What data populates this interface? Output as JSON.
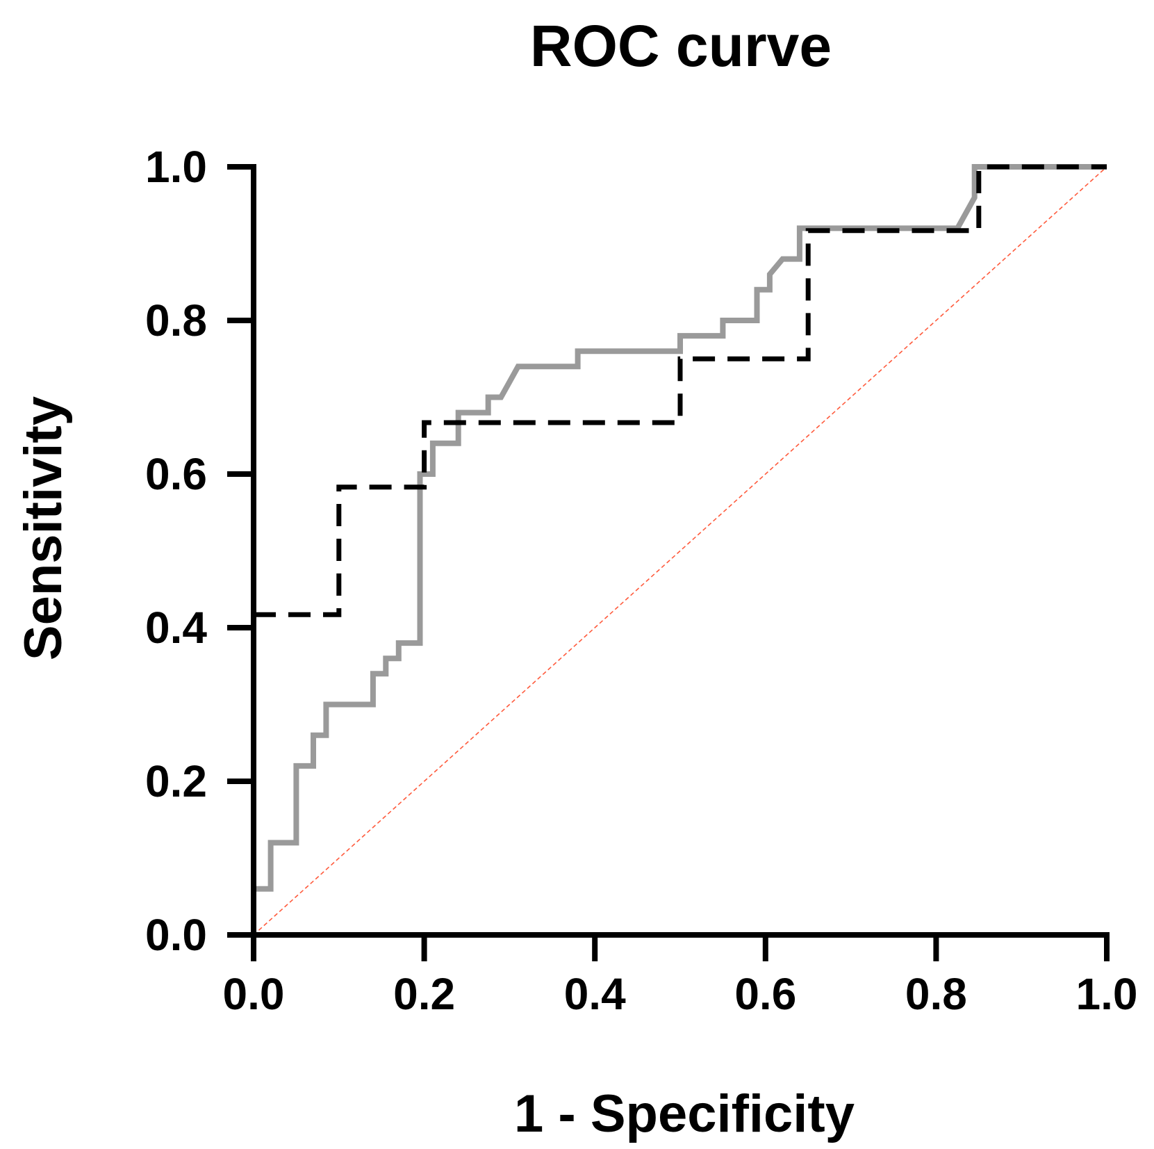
{
  "chart_data": {
    "type": "line",
    "title": "ROC curve",
    "xlabel": "1 - Specificity",
    "ylabel": "Sensitivity",
    "xlim": [
      0,
      1
    ],
    "ylim": [
      0,
      1
    ],
    "xticks": [
      "0.0",
      "0.2",
      "0.4",
      "0.6",
      "0.8",
      "1.0"
    ],
    "yticks": [
      "0.0",
      "0.2",
      "0.4",
      "0.6",
      "0.8",
      "1.0"
    ],
    "grid": false,
    "legend": "none",
    "series": [
      {
        "style": "solid",
        "color": "#9a9a9a",
        "x": [
          0,
          0,
          0.02,
          0.02,
          0.05,
          0.05,
          0.07,
          0.07,
          0.085,
          0.085,
          0.14,
          0.14,
          0.155,
          0.155,
          0.17,
          0.17,
          0.18,
          0.18,
          0.195,
          0.195,
          0.2,
          0.2,
          0.21,
          0.21,
          0.24,
          0.24,
          0.275,
          0.275,
          0.29,
          0.3,
          0.31,
          0.31,
          0.38,
          0.38,
          0.5,
          0.5,
          0.55,
          0.55,
          0.59,
          0.59,
          0.605,
          0.605,
          0.62,
          0.625,
          0.64,
          0.64,
          0.825,
          0.835,
          0.845,
          0.845,
          1
        ],
        "y": [
          0,
          0.06,
          0.06,
          0.12,
          0.12,
          0.22,
          0.22,
          0.26,
          0.26,
          0.3,
          0.3,
          0.34,
          0.34,
          0.36,
          0.36,
          0.38,
          0.38,
          0.38,
          0.38,
          0.6,
          0.6,
          0.6,
          0.6,
          0.64,
          0.64,
          0.68,
          0.68,
          0.7,
          0.7,
          0.72,
          0.74,
          0.74,
          0.74,
          0.76,
          0.76,
          0.78,
          0.78,
          0.8,
          0.8,
          0.84,
          0.84,
          0.86,
          0.88,
          0.88,
          0.88,
          0.92,
          0.92,
          0.94,
          0.96,
          1,
          1
        ]
      },
      {
        "style": "dashed",
        "color": "#000000",
        "x": [
          0,
          0.1,
          0.1,
          0.2,
          0.2,
          0.5,
          0.5,
          0.65,
          0.65,
          0.85,
          0.85,
          1
        ],
        "y": [
          0.417,
          0.417,
          0.583,
          0.583,
          0.667,
          0.667,
          0.75,
          0.75,
          0.917,
          0.917,
          1,
          1
        ]
      },
      {
        "style": "reference",
        "color": "#ff5a3c",
        "x": [
          0,
          1
        ],
        "y": [
          0,
          1
        ]
      }
    ]
  }
}
